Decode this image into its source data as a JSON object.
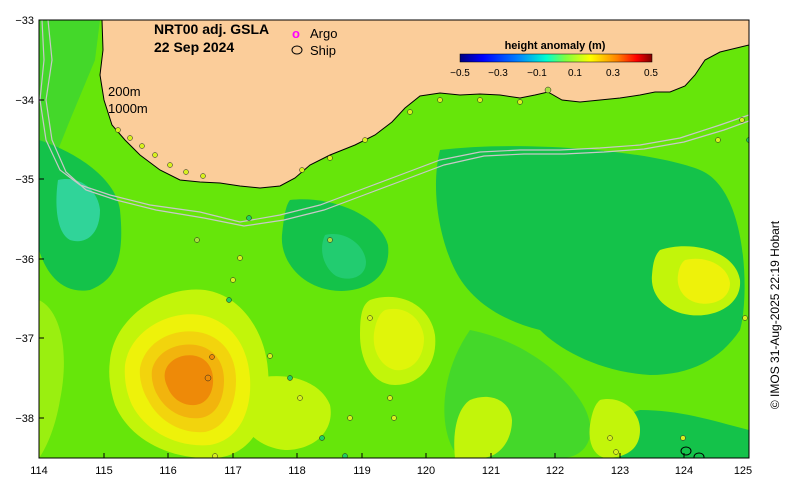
{
  "map": {
    "title": "NRT00 adj. GSLA",
    "date": "22 Sep 2024",
    "isobath_labels": [
      "200m",
      "1000m"
    ],
    "legend": [
      {
        "label": "Argo",
        "symbol": "o",
        "color": "#ff00ff"
      },
      {
        "label": "Ship",
        "symbol": "ellipse",
        "color": "#000000"
      }
    ],
    "colorbar": {
      "title": "height anomaly (m)",
      "ticks": [
        "−0.5",
        "−0.3",
        "−0.1",
        "0.1",
        "0.3",
        "0.5"
      ],
      "colors": [
        "#00007f",
        "#0000ff",
        "#007fff",
        "#00ffff",
        "#7fff7f",
        "#ffff00",
        "#ff7f00",
        "#ff0000",
        "#7f0000"
      ]
    },
    "x_axis": {
      "ticks": [
        "114",
        "115",
        "116",
        "117",
        "118",
        "119",
        "120",
        "121",
        "122",
        "123",
        "124",
        "125"
      ]
    },
    "y_axis": {
      "ticks": [
        "−33",
        "−34",
        "−35",
        "−36",
        "−37",
        "−38"
      ]
    },
    "credit": "© IMOS 31-Aug-2025 22:19 Hobart",
    "colors": {
      "ocean_base": "#66e60a",
      "land": "#fbcd9a",
      "deep_green": "#14c24a",
      "teal": "#30d499",
      "lime": "#c2f50a",
      "yellow": "#eef20a",
      "orange": "#f2b40d",
      "deep_orange": "#ee8a08"
    }
  }
}
